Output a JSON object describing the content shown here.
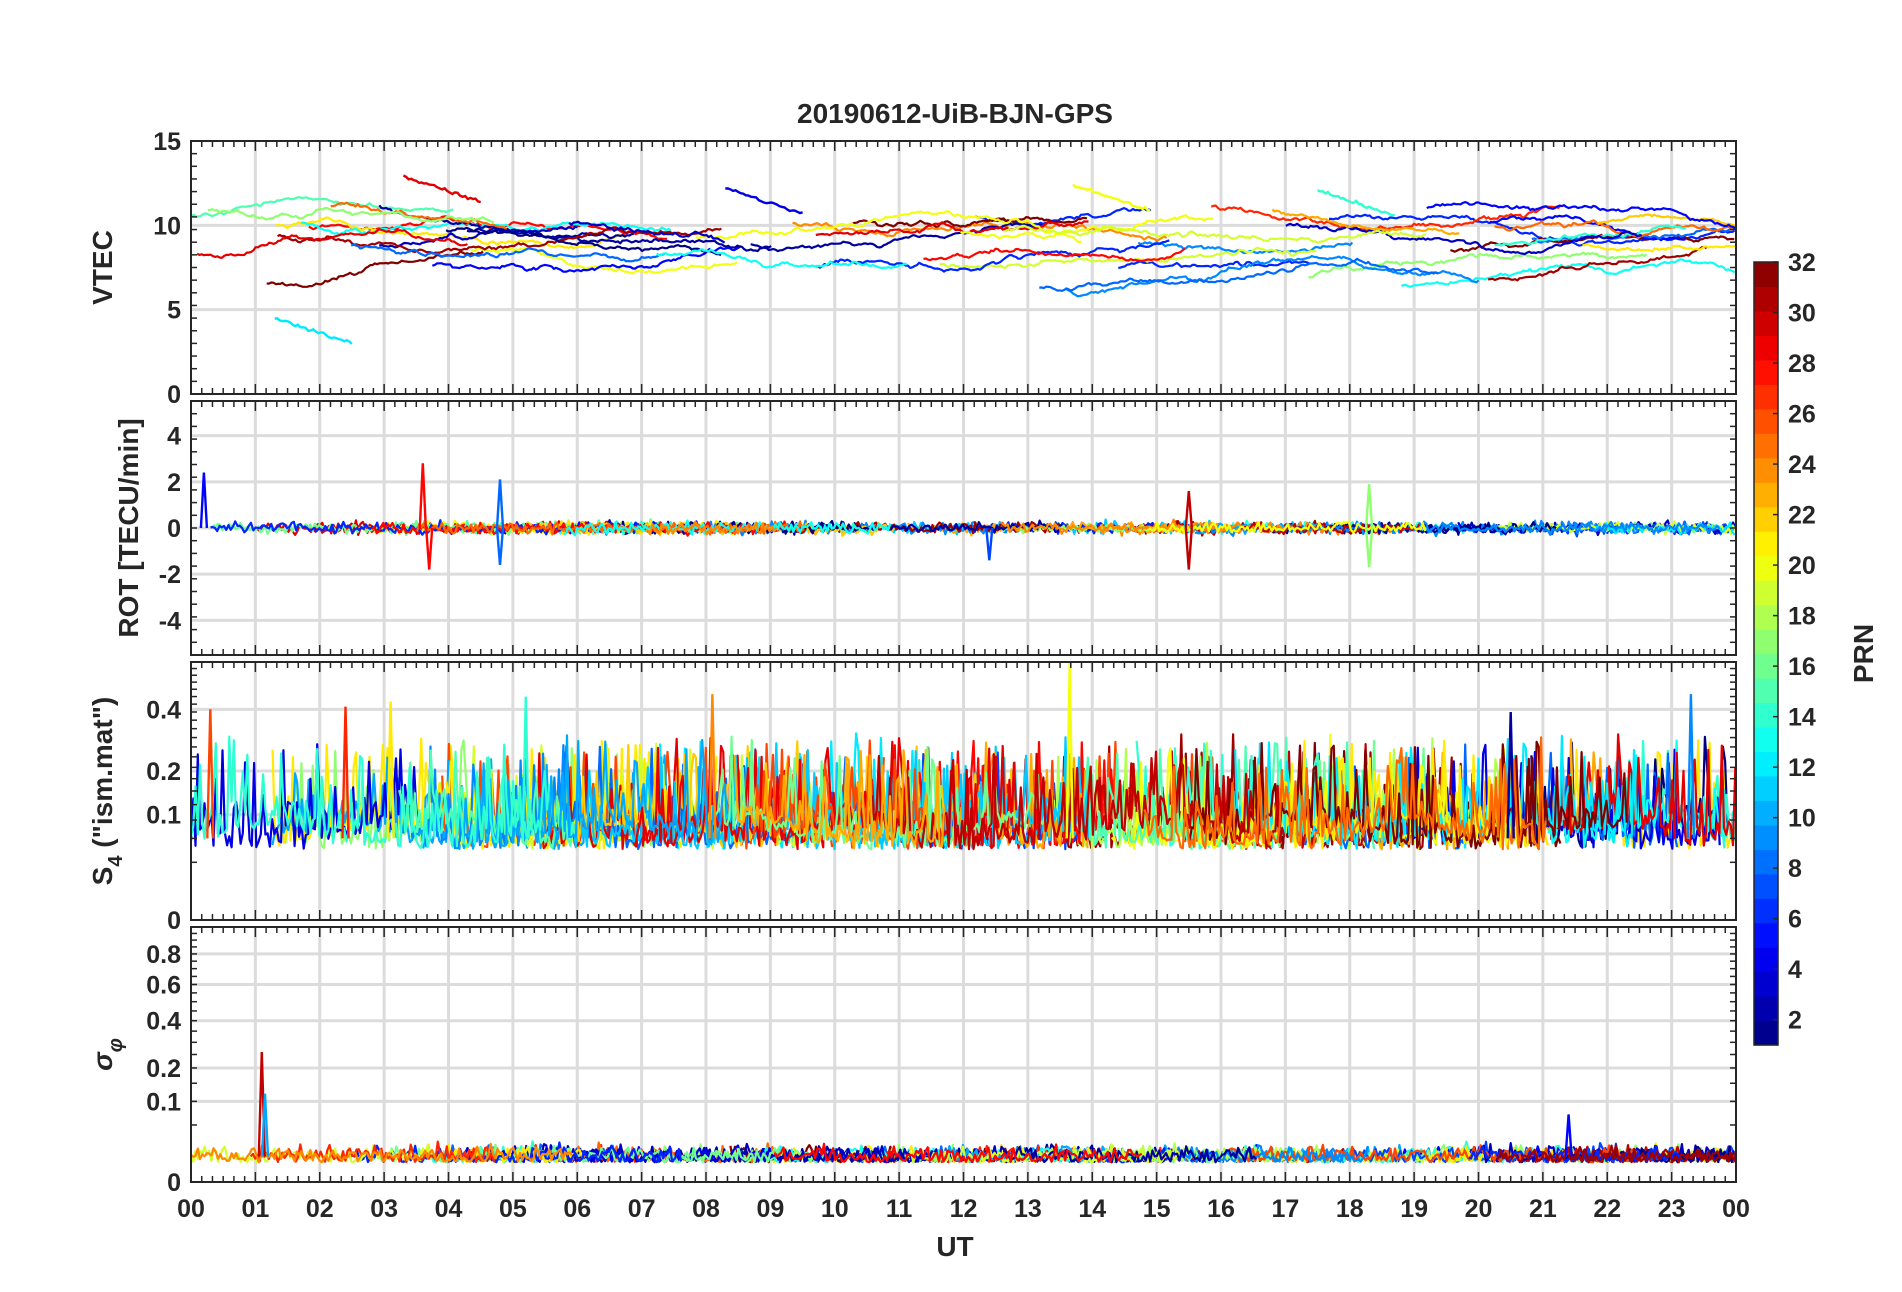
{
  "chart_data": {
    "type": "line",
    "title": "20190612-UiB-BJN-GPS",
    "xlabel": "UT",
    "x_range_hours": [
      0,
      24
    ],
    "x_ticks": [
      "00",
      "01",
      "02",
      "03",
      "04",
      "05",
      "06",
      "07",
      "08",
      "09",
      "10",
      "11",
      "12",
      "13",
      "14",
      "15",
      "16",
      "17",
      "18",
      "19",
      "20",
      "21",
      "22",
      "23",
      "00"
    ],
    "colorbar": {
      "label": "PRN",
      "range": [
        1,
        32
      ],
      "colormap": "jet",
      "ticks": [
        "2",
        "4",
        "6",
        "8",
        "10",
        "12",
        "14",
        "16",
        "18",
        "20",
        "22",
        "24",
        "26",
        "28",
        "30",
        "32"
      ]
    },
    "panels": [
      {
        "id": "vtec",
        "ylabel": "VTEC",
        "ylim": [
          0,
          15
        ],
        "yticks": [
          "0",
          "5",
          "10",
          "15"
        ],
        "typical_range": [
          5.5,
          13
        ],
        "notable_values": [
          {
            "prn": 29,
            "x": 3.3,
            "y": 12.9
          },
          {
            "prn": 4,
            "x": 8.3,
            "y": 12.2
          },
          {
            "prn": 20,
            "x": 13.7,
            "y": 12.4
          },
          {
            "prn": 14,
            "x": 17.5,
            "y": 12.1
          },
          {
            "prn": 12,
            "x": 1.3,
            "y": 4.5
          }
        ]
      },
      {
        "id": "rot",
        "ylabel": "ROT [TECU/min]",
        "ylim": [
          -5.5,
          5.5
        ],
        "yticks": [
          "4",
          "2",
          "0",
          "-2",
          "-4"
        ],
        "typical_range": [
          -0.5,
          0.5
        ],
        "spikes": [
          {
            "prn": 5,
            "x": 0.2,
            "y": 2.4
          },
          {
            "prn": 28,
            "x": 3.6,
            "y": 2.8
          },
          {
            "prn": 28,
            "x": 3.7,
            "y": -1.8
          },
          {
            "prn": 8,
            "x": 4.8,
            "y": 2.1
          },
          {
            "prn": 8,
            "x": 4.8,
            "y": -1.6
          },
          {
            "prn": 7,
            "x": 12.4,
            "y": -1.4
          },
          {
            "prn": 30,
            "x": 15.5,
            "y": 1.6
          },
          {
            "prn": 30,
            "x": 15.5,
            "y": -1.8
          },
          {
            "prn": 17,
            "x": 18.3,
            "y": 1.9
          },
          {
            "prn": 17,
            "x": 18.3,
            "y": -1.7
          }
        ]
      },
      {
        "id": "s4",
        "ylabel": "S4 (\"ism.mat\")",
        "ylabel_main": "S",
        "ylabel_sub": "4",
        "ylabel_rest": " (\"ism.mat\")",
        "ylim": [
          0,
          0.6
        ],
        "y_scale": "sqrt",
        "yticks": [
          "0",
          "0.1",
          "0.2",
          "0.4"
        ],
        "typical_range": [
          0.03,
          0.15
        ],
        "peaks": [
          {
            "prn": 20,
            "x": 13.65,
            "y": 0.6
          },
          {
            "prn": 24,
            "x": 8.1,
            "y": 0.46
          },
          {
            "prn": 14,
            "x": 5.2,
            "y": 0.45
          },
          {
            "prn": 9,
            "x": 23.3,
            "y": 0.46
          },
          {
            "prn": 21,
            "x": 3.1,
            "y": 0.43
          },
          {
            "prn": 27,
            "x": 2.4,
            "y": 0.41
          },
          {
            "prn": 2,
            "x": 20.5,
            "y": 0.39
          },
          {
            "prn": 26,
            "x": 0.3,
            "y": 0.4
          }
        ]
      },
      {
        "id": "sigma",
        "ylabel": "σ φ",
        "ylabel_main": "σ",
        "ylabel_sub": "φ",
        "ylim": [
          0,
          1.0
        ],
        "y_scale": "sqrt",
        "yticks": [
          "0",
          "0.1",
          "0.2",
          "0.4",
          "0.6",
          "0.8"
        ],
        "typical_range": [
          0.0,
          0.03
        ],
        "spikes": [
          {
            "prn": 30,
            "x": 1.1,
            "y": 0.26
          },
          {
            "prn": 10,
            "x": 1.15,
            "y": 0.12
          },
          {
            "prn": 5,
            "x": 21.4,
            "y": 0.07
          }
        ]
      }
    ]
  }
}
